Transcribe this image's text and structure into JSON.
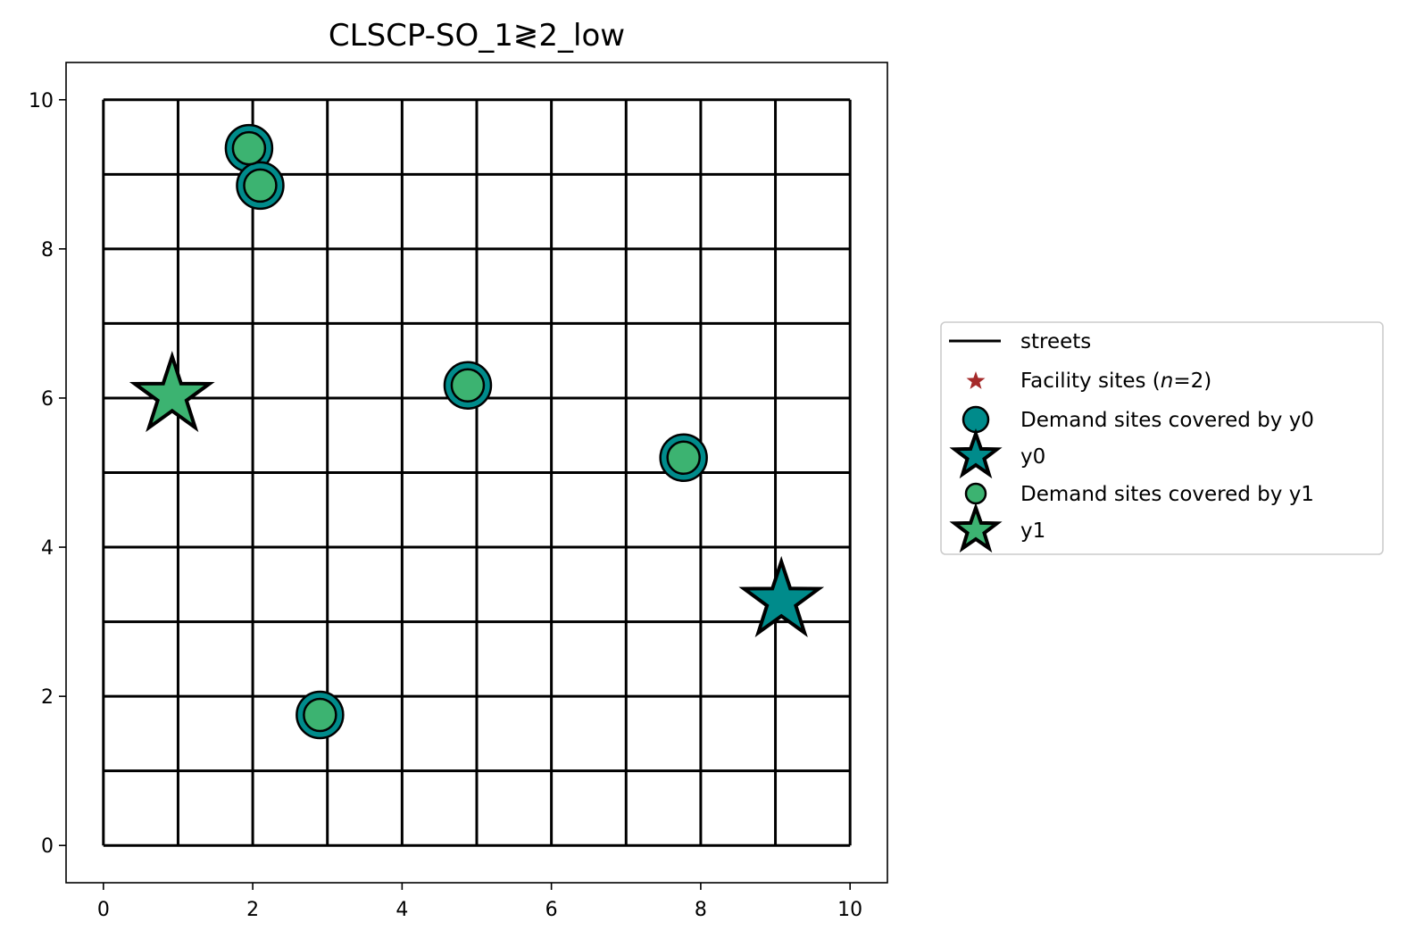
{
  "chart_data": {
    "type": "scatter",
    "title": "CLSCP-SO_1≷2_low",
    "xlabel": "",
    "ylabel": "",
    "xlim": [
      -0.5,
      10.5
    ],
    "ylim": [
      -0.5,
      10.5
    ],
    "xticks": [
      0,
      2,
      4,
      6,
      8,
      10
    ],
    "yticks": [
      0,
      2,
      4,
      6,
      8,
      10
    ],
    "xtick_labels": [
      "0",
      "2",
      "4",
      "6",
      "8",
      "10"
    ],
    "ytick_labels": [
      "0",
      "2",
      "4",
      "6",
      "8",
      "10"
    ],
    "grid": false,
    "streets": {
      "min": 0,
      "max": 10,
      "step": 1,
      "color": "#000000"
    },
    "facility_sites": [
      {
        "name": "y0",
        "x": 9.08,
        "y": 3.28,
        "color": "#008b8b"
      },
      {
        "name": "y1",
        "x": 0.92,
        "y": 6.03,
        "color": "#3cb371"
      }
    ],
    "demand_sites": [
      {
        "x": 1.95,
        "y": 9.35
      },
      {
        "x": 2.1,
        "y": 8.85
      },
      {
        "x": 4.88,
        "y": 6.17
      },
      {
        "x": 7.77,
        "y": 5.2
      },
      {
        "x": 2.9,
        "y": 1.75
      }
    ],
    "legend": {
      "placement": "center-right-outside",
      "entries": [
        {
          "label": "streets",
          "marker": "line",
          "color": "#000000"
        },
        {
          "label": "Facility sites (n=2)",
          "label_pre": "Facility sites (",
          "label_italic": "n",
          "label_post": "=2)",
          "marker": "small-star",
          "color": "#a52a2a"
        },
        {
          "label": "Demand sites covered by y0",
          "marker": "circle",
          "color": "#008b8b"
        },
        {
          "label": "y0",
          "marker": "star",
          "color": "#008b8b"
        },
        {
          "label": "Demand sites covered by y1",
          "marker": "circle",
          "color": "#3cb371"
        },
        {
          "label": "y1",
          "marker": "star",
          "color": "#3cb371"
        }
      ]
    }
  }
}
